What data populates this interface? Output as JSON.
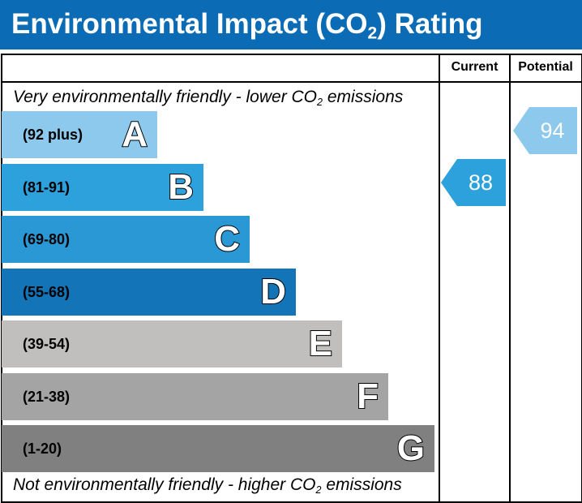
{
  "header": {
    "title_pre": "Environmental Impact (CO",
    "title_sub": "2",
    "title_post": ") Rating",
    "bg": "#0b6cb5"
  },
  "columns": {
    "current": "Current",
    "potential": "Potential"
  },
  "captions": {
    "top": {
      "pre": "Very environmentally friendly - lower CO",
      "sub": "2",
      "post": " emissions"
    },
    "bottom": {
      "pre": "Not environmentally friendly - higher CO",
      "sub": "2",
      "post": " emissions"
    }
  },
  "chart_data": {
    "type": "bar",
    "categories": [
      "A",
      "B",
      "C",
      "D",
      "E",
      "F",
      "G"
    ],
    "bands": [
      {
        "letter": "A",
        "range": "(92 plus)",
        "min": 92,
        "max": null,
        "color": "#8cc9ec"
      },
      {
        "letter": "B",
        "range": "(81-91)",
        "min": 81,
        "max": 91,
        "color": "#2ca1db"
      },
      {
        "letter": "C",
        "range": "(69-80)",
        "min": 69,
        "max": 80,
        "color": "#2a98d5"
      },
      {
        "letter": "D",
        "range": "(55-68)",
        "min": 55,
        "max": 68,
        "color": "#1374b8"
      },
      {
        "letter": "E",
        "range": "(39-54)",
        "min": 39,
        "max": 54,
        "color": "#c0bfbd"
      },
      {
        "letter": "F",
        "range": "(21-38)",
        "min": 21,
        "max": 38,
        "color": "#a4a4a4"
      },
      {
        "letter": "G",
        "range": "(1-20)",
        "min": 1,
        "max": 20,
        "color": "#808080"
      }
    ],
    "current": {
      "value": 88,
      "band": "B",
      "color": "#2ca1db"
    },
    "potential": {
      "value": 94,
      "band": "A",
      "color": "#8cc9ec"
    }
  }
}
